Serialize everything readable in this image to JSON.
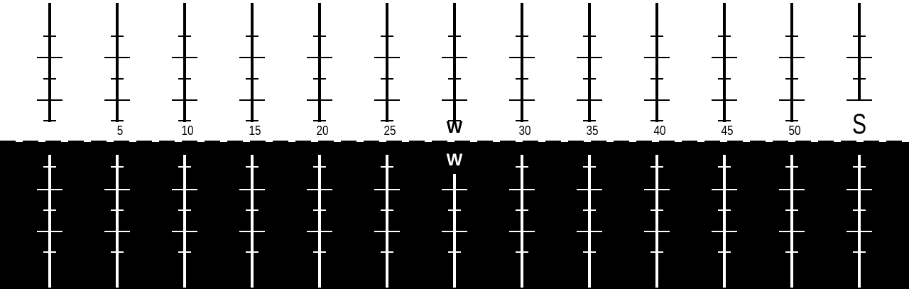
{
  "compass": {
    "top_tape": {
      "labels": [
        "",
        "5",
        "10",
        "15",
        "20",
        "25",
        "W",
        "30",
        "35",
        "40",
        "45",
        "50",
        "S"
      ],
      "colors": {
        "background": "#ffffff",
        "marks": "#000000"
      }
    },
    "bottom_tape": {
      "labels": [
        "",
        "",
        "",
        "",
        "",
        "",
        "W",
        "",
        "",
        "",
        "",
        "",
        ""
      ],
      "colors": {
        "background": "#000000",
        "marks": "#ffffff"
      }
    },
    "divider": {
      "style": "dashed",
      "color": "#000000"
    }
  }
}
